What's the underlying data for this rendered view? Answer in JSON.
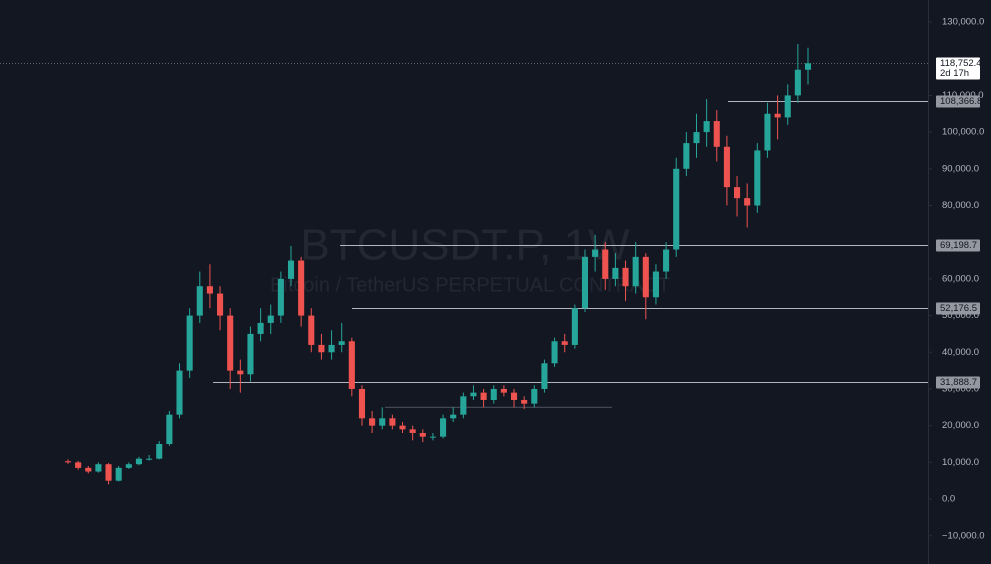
{
  "chart_data": {
    "type": "candlestick",
    "watermark": [
      "BTCUSDT.P, 1W",
      "Bitcoin / TetherUS PERPETUAL CONTRACT"
    ],
    "ylim": [
      -17700,
      136000
    ],
    "yticks": [
      {
        "value": 130000,
        "label": "130,000.0"
      },
      {
        "value": 110000,
        "label": "110,000.0"
      },
      {
        "value": 100000,
        "label": "100,000.0"
      },
      {
        "value": 90000,
        "label": "90,000.0"
      },
      {
        "value": 80000,
        "label": "80,000.0"
      },
      {
        "value": 60000,
        "label": "60,000.0"
      },
      {
        "value": 50000,
        "label": "50,000.0"
      },
      {
        "value": 40000,
        "label": "40,000.0"
      },
      {
        "value": 30000,
        "label": "30,000.0"
      },
      {
        "value": 20000,
        "label": "20,000.0"
      },
      {
        "value": 10000,
        "label": "10,000.0"
      },
      {
        "value": 0,
        "label": "0.0"
      },
      {
        "value": -10000,
        "label": "−10,000.0"
      }
    ],
    "grid": false,
    "up_color": "#26a69a",
    "down_color": "#ef5350",
    "open": [
      10300,
      10000,
      8500,
      7500,
      9500,
      5000,
      8500,
      9500,
      11000,
      11000,
      15000,
      23000,
      35000,
      50000,
      58000,
      56000,
      50000,
      35000,
      34000,
      45000,
      48000,
      50000,
      60000,
      65000,
      50000,
      42000,
      40000,
      42000,
      43000,
      30000,
      22000,
      20000,
      22000,
      20000,
      19000,
      18000,
      17000,
      17000,
      22000,
      23000,
      28000,
      29000,
      27000,
      30000,
      29000,
      27000,
      26000,
      30000,
      37000,
      43000,
      42000,
      52000,
      66000,
      68000,
      60000,
      63000,
      58000,
      66000,
      55000,
      62000,
      68000,
      90000,
      97000,
      100000,
      103000,
      96000,
      85000,
      82000,
      80000,
      95000,
      105000,
      104000,
      110000,
      117000
    ],
    "high": [
      10800,
      10400,
      9000,
      10000,
      9800,
      9000,
      10000,
      11500,
      12000,
      15800,
      24000,
      37000,
      52000,
      62000,
      64000,
      58000,
      52000,
      38000,
      47000,
      52000,
      53000,
      62000,
      69000,
      66000,
      52000,
      45000,
      46000,
      48000,
      44000,
      31000,
      24000,
      25000,
      23000,
      21000,
      20000,
      19000,
      18000,
      23000,
      25000,
      29000,
      31000,
      30000,
      31000,
      31000,
      30000,
      28000,
      31000,
      38000,
      44000,
      45000,
      53000,
      68000,
      72000,
      70000,
      67000,
      65000,
      70000,
      67000,
      64000,
      70000,
      93000,
      100000,
      105000,
      109000,
      106000,
      99000,
      88000,
      86000,
      97000,
      108000,
      110000,
      113000,
      124000,
      123000
    ],
    "low": [
      9600,
      8000,
      7000,
      7200,
      4000,
      4800,
      8200,
      9200,
      10500,
      10800,
      14500,
      22000,
      33000,
      48000,
      52000,
      46000,
      30000,
      29000,
      32000,
      43000,
      45000,
      48000,
      58000,
      47000,
      40000,
      38000,
      38000,
      40000,
      28000,
      20000,
      18000,
      19000,
      19000,
      18000,
      16000,
      15500,
      16000,
      16500,
      21000,
      22000,
      27000,
      25000,
      26000,
      28000,
      25000,
      24500,
      25000,
      29000,
      36000,
      40000,
      41000,
      51000,
      62000,
      57000,
      58000,
      54000,
      56000,
      49000,
      53000,
      60000,
      66000,
      88000,
      93000,
      96000,
      92000,
      80000,
      77000,
      74000,
      78000,
      93000,
      98000,
      102000,
      108000,
      113000
    ],
    "close": [
      10000,
      8500,
      7500,
      9500,
      5000,
      8500,
      9500,
      11000,
      11000,
      15000,
      23000,
      35000,
      50000,
      58000,
      56000,
      50000,
      35000,
      34000,
      45000,
      48000,
      50000,
      60000,
      65000,
      50000,
      42000,
      40000,
      42000,
      43000,
      30000,
      22000,
      20000,
      22000,
      20000,
      19000,
      18000,
      17000,
      17000,
      22000,
      23000,
      28000,
      29000,
      27000,
      30000,
      29000,
      27000,
      26000,
      30000,
      37000,
      43000,
      42000,
      52000,
      66000,
      68000,
      60000,
      63000,
      58000,
      66000,
      55000,
      62000,
      68000,
      90000,
      97000,
      100000,
      103000,
      96000,
      85000,
      82000,
      80000,
      95000,
      105000,
      104000,
      110000,
      117000,
      118750
    ],
    "last_price": {
      "value": 118752.4,
      "label": "118,752.4"
    },
    "countdown": "2d 17h",
    "levels": [
      {
        "value": 108366.8,
        "label": "108,366.8"
      },
      {
        "value": 69198.7,
        "label": "69,198.7"
      },
      {
        "value": 52176.5,
        "label": "52,176.5"
      },
      {
        "value": 31888.7,
        "label": "31,888.7"
      }
    ],
    "range_line": 25000
  }
}
